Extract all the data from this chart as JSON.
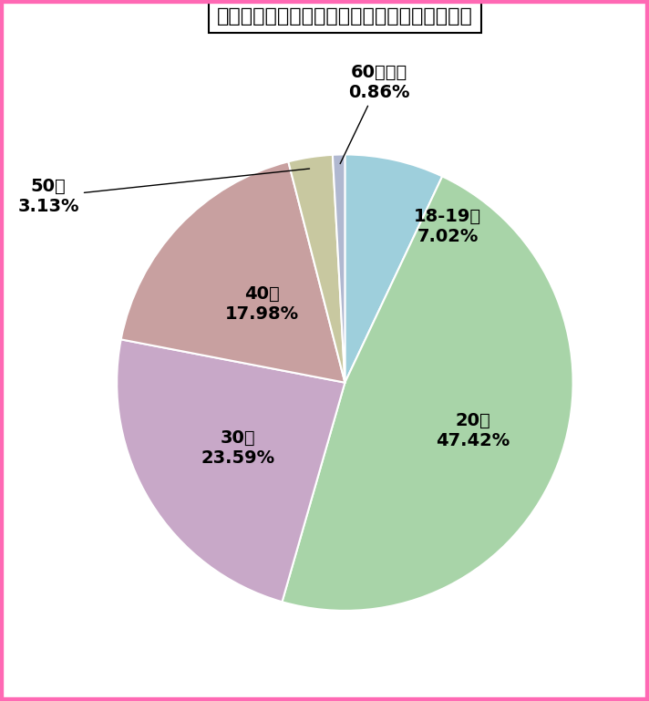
{
  "title": "神奈川県のワクワクメール：女性会員の年齢層",
  "labels": [
    "18-19歳",
    "20代",
    "30代",
    "40代",
    "50代",
    "60代以上"
  ],
  "values": [
    7.02,
    47.42,
    23.59,
    17.98,
    3.13,
    0.86
  ],
  "colors": [
    "#9ecfdc",
    "#a8d4a8",
    "#c8a8c8",
    "#c8a0a0",
    "#c8c8a0",
    "#b0b8d0"
  ],
  "background_color": "#ffffff",
  "border_color": "#ff69b4",
  "title_fontsize": 16,
  "label_fontsize": 14,
  "startangle": 90
}
